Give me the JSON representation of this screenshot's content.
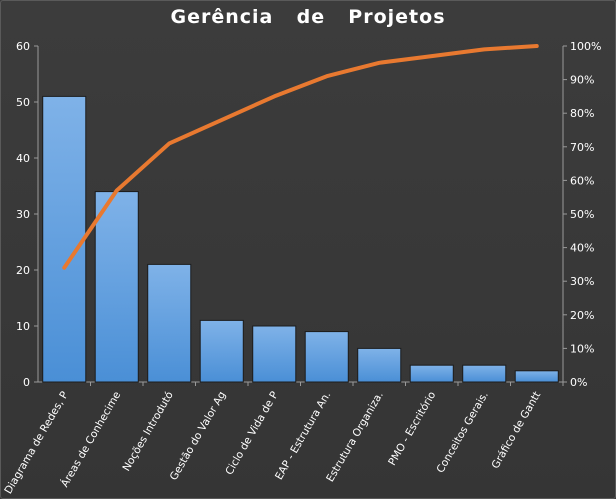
{
  "chart_data": {
    "type": "bar",
    "title": "Gerência  de  Projetos",
    "categories": [
      "Diagrama de Redes, P",
      "Áreas de Conhecime",
      "Noções Introdutó",
      "Gestão do Valor Ag",
      "Ciclo de Vida de P",
      "EAP - Estrutura An.",
      "Estrutura Organiza.",
      "PMO - Escritório",
      "Conceitos Gerais.",
      "Gráfico de Gantt"
    ],
    "series": [
      {
        "type": "bar",
        "values": [
          51,
          34,
          21,
          11,
          10,
          9,
          6,
          3,
          3,
          2
        ]
      },
      {
        "type": "line",
        "axis": "right",
        "values": [
          34,
          57,
          71,
          78,
          85,
          91,
          95,
          97,
          99,
          100
        ]
      }
    ],
    "ylim": [
      0,
      60
    ],
    "yticks": [
      "0",
      "10",
      "20",
      "30",
      "40",
      "50",
      "60"
    ],
    "y2lim": [
      0,
      100
    ],
    "y2ticks": [
      "0%",
      "10%",
      "20%",
      "30%",
      "40%",
      "50%",
      "60%",
      "70%",
      "80%",
      "90%",
      "100%"
    ],
    "grid": false,
    "legend": "none",
    "colors": {
      "bar": "#4a8fd6",
      "bar_light": "#7fb2e8",
      "line": "#e87930",
      "background": "#3a3a3a",
      "axis": "#9a9a9a"
    }
  }
}
